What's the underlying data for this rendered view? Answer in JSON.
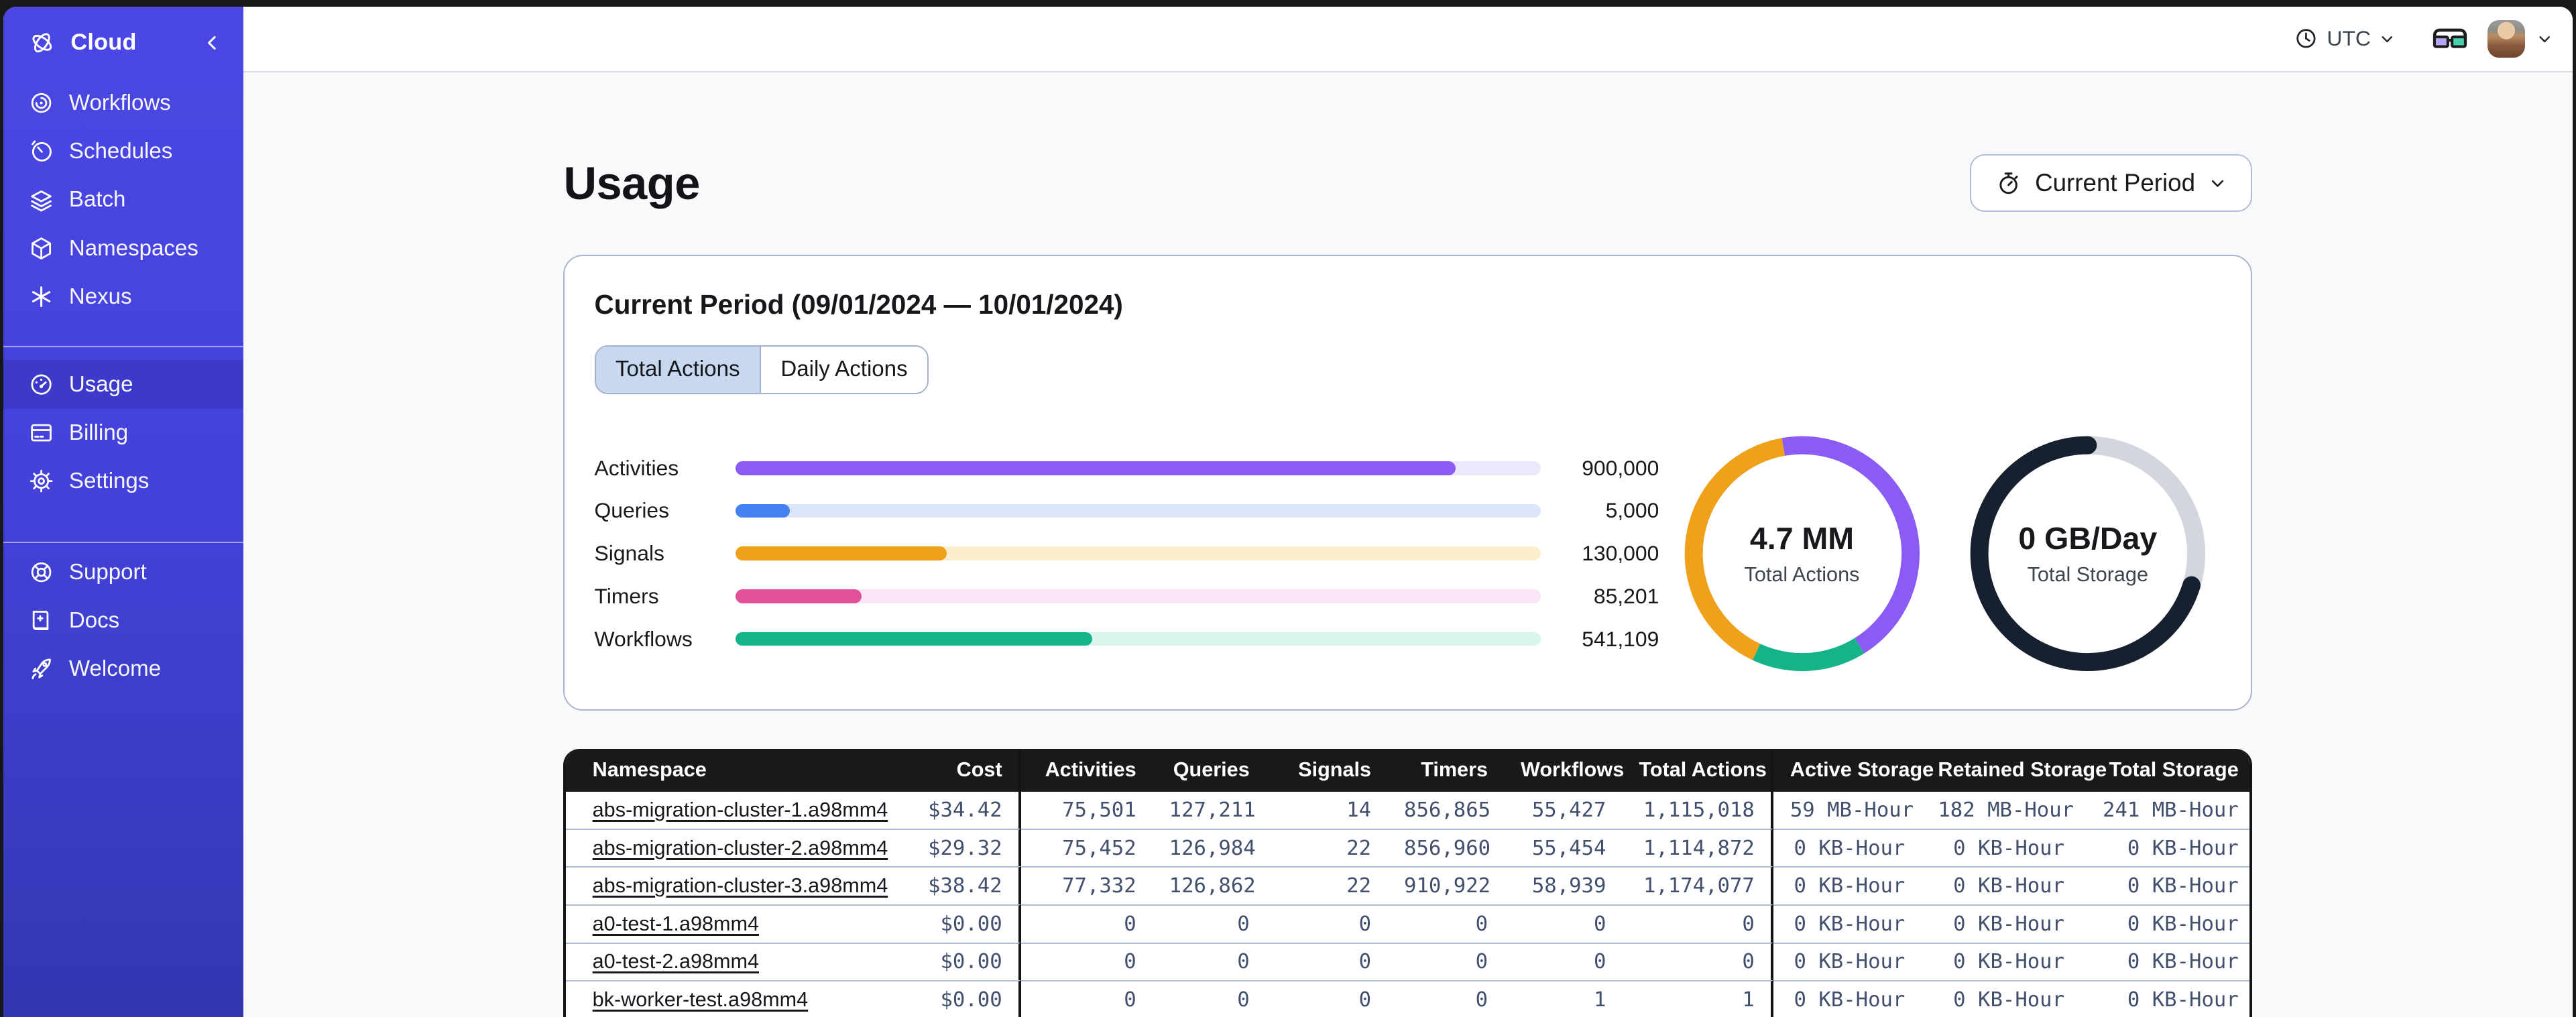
{
  "sidebar": {
    "header": {
      "label": "Cloud"
    },
    "nav_primary": [
      {
        "id": "workflows",
        "label": "Workflows"
      },
      {
        "id": "schedules",
        "label": "Schedules"
      },
      {
        "id": "batch",
        "label": "Batch"
      },
      {
        "id": "namespaces",
        "label": "Namespaces"
      },
      {
        "id": "nexus",
        "label": "Nexus"
      }
    ],
    "nav_account": [
      {
        "id": "usage",
        "label": "Usage",
        "active": true
      },
      {
        "id": "billing",
        "label": "Billing"
      },
      {
        "id": "settings",
        "label": "Settings"
      }
    ],
    "nav_help": [
      {
        "id": "support",
        "label": "Support"
      },
      {
        "id": "docs",
        "label": "Docs"
      },
      {
        "id": "welcome",
        "label": "Welcome"
      }
    ]
  },
  "topbar": {
    "timezone": "UTC"
  },
  "page": {
    "title": "Usage",
    "period_button": "Current Period"
  },
  "usage_card": {
    "title": "Current Period (09/01/2024 — 10/01/2024)",
    "tabs": [
      {
        "label": "Total Actions",
        "active": true
      },
      {
        "label": "Daily Actions",
        "active": false
      }
    ],
    "bars": [
      {
        "label": "Activities",
        "value": "900,000",
        "pct": 89.4,
        "color": "#8b5cf4",
        "track": "#ece8fc"
      },
      {
        "label": "Queries",
        "value": "5,000",
        "pct": 6.7,
        "color": "#4481f1",
        "track": "#dbe6f9"
      },
      {
        "label": "Signals",
        "value": "130,000",
        "pct": 26.2,
        "color": "#f0a11b",
        "track": "#fcf0cc"
      },
      {
        "label": "Timers",
        "value": "85,201",
        "pct": 15.6,
        "color": "#e0509b",
        "track": "#fbe5f5"
      },
      {
        "label": "Workflows",
        "value": "541,109",
        "pct": 44.3,
        "color": "#14b388",
        "track": "#d9f6ea"
      }
    ],
    "donuts": [
      {
        "value": "4.7 MM",
        "label": "Total Actions",
        "start_deg": -10,
        "segments": [
          {
            "name": "activities",
            "color": "#8b5cf4",
            "pct": 43.9
          },
          {
            "name": "workflows",
            "color": "#14b388",
            "pct": 15.8
          },
          {
            "name": "signals",
            "color": "#f0a11b",
            "pct": 40.3
          }
        ]
      },
      {
        "value": "0 GB/Day",
        "label": "Total Storage",
        "start_deg": 0,
        "segments": [
          {
            "name": "remaining",
            "color": "#d3d6dd",
            "pct": 29.7
          },
          {
            "name": "used",
            "color": "#16202f",
            "pct": 70.3,
            "cap": "round"
          }
        ]
      }
    ]
  },
  "table": {
    "columns": [
      {
        "label": "Namespace"
      },
      {
        "label": "Cost"
      },
      {
        "label": "Activities"
      },
      {
        "label": "Queries"
      },
      {
        "label": "Signals"
      },
      {
        "label": "Timers"
      },
      {
        "label": "Workflows"
      },
      {
        "label": "Total Actions"
      },
      {
        "label": "Active Storage"
      },
      {
        "label": "Retained Storage"
      },
      {
        "label": "Total Storage"
      }
    ],
    "rows": [
      {
        "namespace": "abs-migration-cluster-1.a98mm4",
        "cost": "$34.42",
        "activities": "75,501",
        "queries": "127,211",
        "signals": "14",
        "timers": "856,865",
        "workflows": "55,427",
        "total_actions": "1,115,018",
        "active_storage": "59 MB-Hour",
        "retained_storage": "182 MB-Hour",
        "total_storage": "241 MB-Hour"
      },
      {
        "namespace": "abs-migration-cluster-2.a98mm4",
        "cost": "$29.32",
        "activities": "75,452",
        "queries": "126,984",
        "signals": "22",
        "timers": "856,960",
        "workflows": "55,454",
        "total_actions": "1,114,872",
        "active_storage": "0 KB-Hour",
        "retained_storage": "0 KB-Hour",
        "total_storage": "0 KB-Hour"
      },
      {
        "namespace": "abs-migration-cluster-3.a98mm4",
        "cost": "$38.42",
        "activities": "77,332",
        "queries": "126,862",
        "signals": "22",
        "timers": "910,922",
        "workflows": "58,939",
        "total_actions": "1,174,077",
        "active_storage": "0 KB-Hour",
        "retained_storage": "0 KB-Hour",
        "total_storage": "0 KB-Hour"
      },
      {
        "namespace": "a0-test-1.a98mm4",
        "cost": "$0.00",
        "activities": "0",
        "queries": "0",
        "signals": "0",
        "timers": "0",
        "workflows": "0",
        "total_actions": "0",
        "active_storage": "0 KB-Hour",
        "retained_storage": "0 KB-Hour",
        "total_storage": "0 KB-Hour"
      },
      {
        "namespace": "a0-test-2.a98mm4",
        "cost": "$0.00",
        "activities": "0",
        "queries": "0",
        "signals": "0",
        "timers": "0",
        "workflows": "0",
        "total_actions": "0",
        "active_storage": "0 KB-Hour",
        "retained_storage": "0 KB-Hour",
        "total_storage": "0 KB-Hour"
      },
      {
        "namespace": "bk-worker-test.a98mm4",
        "cost": "$0.00",
        "activities": "0",
        "queries": "0",
        "signals": "0",
        "timers": "0",
        "workflows": "1",
        "total_actions": "1",
        "active_storage": "0 KB-Hour",
        "retained_storage": "0 KB-Hour",
        "total_storage": "0 KB-Hour"
      }
    ]
  }
}
